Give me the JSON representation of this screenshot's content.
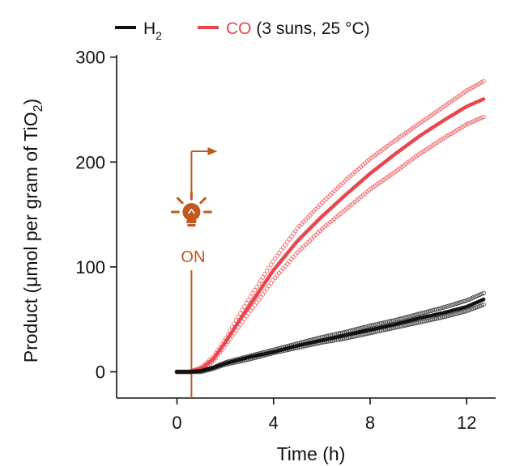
{
  "chart_data": {
    "type": "line",
    "xlabel": "Time (h)",
    "ylabel_prefix": "Product (μmol per gram of TiO",
    "ylabel_sub": "2",
    "ylabel_suffix": ")",
    "xlim": [
      -2.5,
      13.2
    ],
    "ylim": [
      -25,
      302
    ],
    "xticks": [
      0,
      4,
      8,
      12
    ],
    "yticks": [
      0,
      100,
      200,
      300
    ],
    "grid": false,
    "legend": {
      "placement": "top",
      "items": [
        {
          "key": "h2",
          "label_main": "H",
          "label_sub": "2",
          "label_extra": "",
          "color": "#111111"
        },
        {
          "key": "co",
          "label_main": "CO",
          "label_sub": "",
          "label_extra": " (3 suns, 25 °C)",
          "color": "#e8474e"
        }
      ]
    },
    "annotation": {
      "text": "ON",
      "light_on_time": 0.6,
      "color": "#bf5a1f",
      "icon": "lightbulb-icon",
      "arrow": "right-arrow"
    },
    "series": [
      {
        "name": "CO mean",
        "color": "#e8474e",
        "x": [
          0,
          0.5,
          1,
          1.5,
          2,
          2.5,
          3,
          3.5,
          4,
          5,
          6,
          7,
          8,
          9,
          10,
          11,
          12,
          12.7
        ],
        "y": [
          0,
          0,
          3,
          12,
          28,
          46,
          63,
          80,
          97,
          125,
          148,
          169,
          189,
          207,
          224,
          239,
          253,
          260
        ]
      },
      {
        "name": "CO upper",
        "color": "#e8474e",
        "x": [
          0,
          0.5,
          1,
          1.5,
          2,
          2.5,
          3,
          3.5,
          4,
          5,
          6,
          7,
          8,
          9,
          10,
          11,
          12,
          12.7
        ],
        "y": [
          0,
          0,
          4,
          14,
          31,
          51,
          70,
          88,
          106,
          137,
          161,
          183,
          203,
          220,
          236,
          252,
          268,
          277
        ]
      },
      {
        "name": "CO lower",
        "color": "#e8474e",
        "x": [
          0,
          0.5,
          1,
          1.5,
          2,
          2.5,
          3,
          3.5,
          4,
          5,
          6,
          7,
          8,
          9,
          10,
          11,
          12,
          12.7
        ],
        "y": [
          0,
          0,
          2,
          10,
          25,
          41,
          57,
          72,
          88,
          114,
          136,
          155,
          174,
          190,
          207,
          222,
          236,
          243
        ]
      },
      {
        "name": "H2 mean",
        "color": "#111111",
        "x": [
          0,
          0.5,
          1,
          1.5,
          2,
          3,
          4,
          5,
          6,
          7,
          8,
          9,
          10,
          11,
          12,
          12.7
        ],
        "y": [
          0,
          0,
          1,
          4,
          8,
          14,
          19,
          25,
          30,
          35,
          40,
          45,
          51,
          56,
          62,
          69
        ]
      },
      {
        "name": "H2 upper",
        "color": "#111111",
        "x": [
          0,
          0.5,
          1,
          1.5,
          2,
          3,
          4,
          5,
          6,
          7,
          8,
          9,
          10,
          11,
          12,
          12.7
        ],
        "y": [
          0,
          0,
          1,
          4,
          9,
          15,
          21,
          27,
          33,
          38,
          44,
          49,
          55,
          61,
          68,
          75
        ]
      },
      {
        "name": "H2 lower",
        "color": "#111111",
        "x": [
          0,
          0.5,
          1,
          1.5,
          2,
          3,
          4,
          5,
          6,
          7,
          8,
          9,
          10,
          11,
          12,
          12.7
        ],
        "y": [
          0,
          0,
          0,
          3,
          7,
          12,
          18,
          23,
          28,
          32,
          37,
          42,
          47,
          52,
          58,
          64
        ]
      }
    ]
  }
}
